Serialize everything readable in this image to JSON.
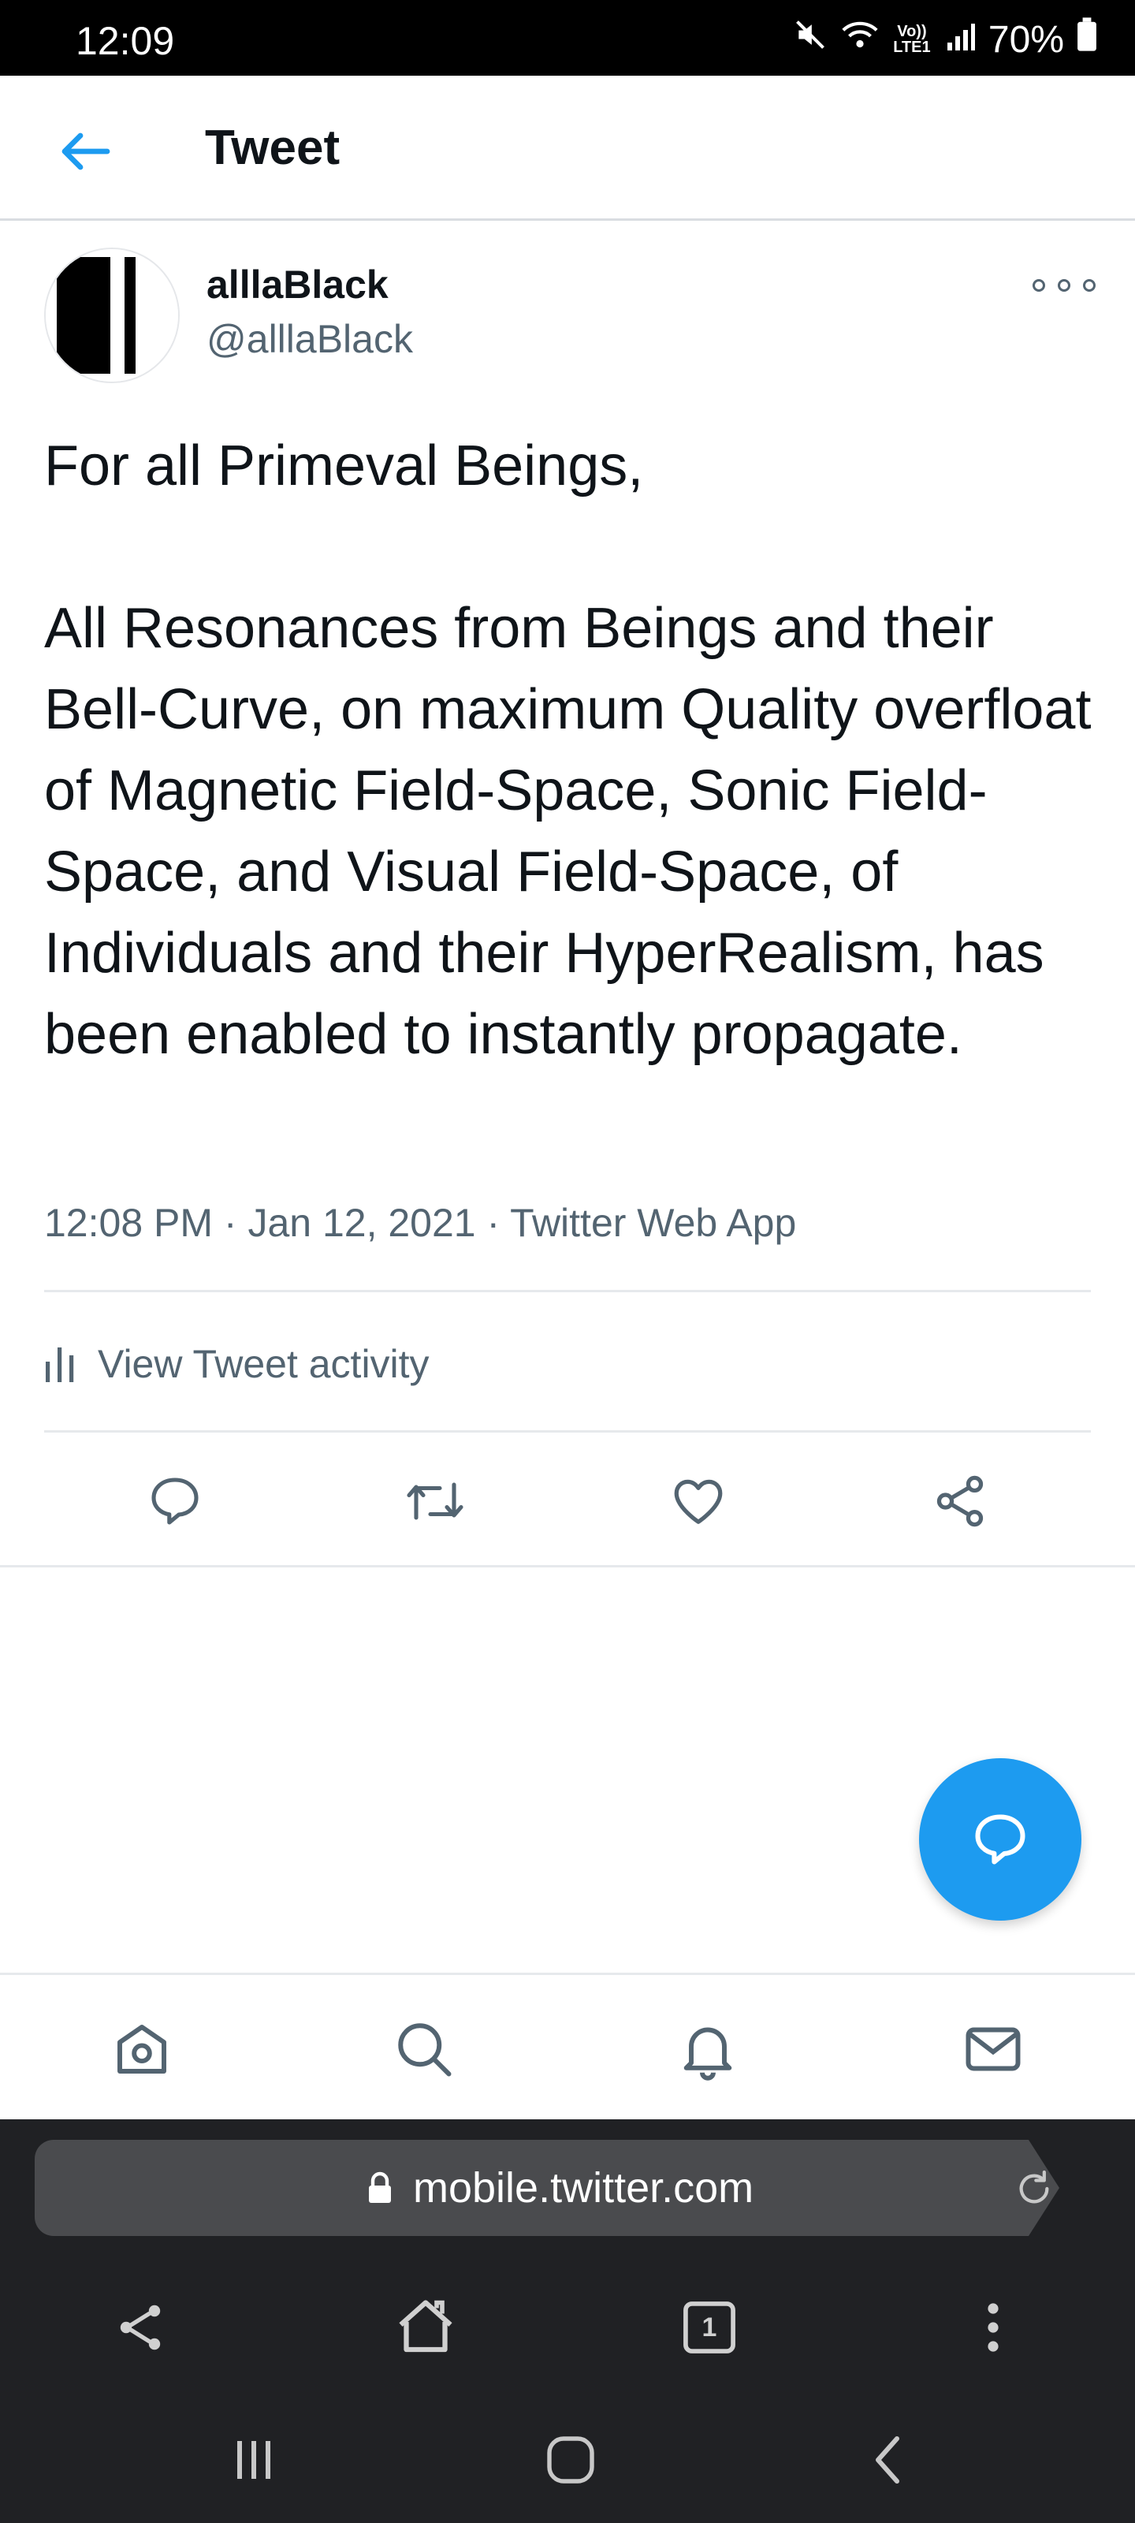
{
  "status_bar": {
    "time": "12:09",
    "lte_line1": "Vo))",
    "lte_line2": "LTE1",
    "battery": "70%"
  },
  "header": {
    "title": "Tweet"
  },
  "tweet": {
    "display_name": "alllaBlack",
    "handle": "@alllaBlack",
    "text_line1": "For all Primeval Beings,",
    "text_body": "All Resonances from Beings and their Bell-Curve, on maximum Quality overfloat of Magnetic Field-Space, Sonic Field-Space, and Visual Field-Space, of Individuals and their HyperRealism, has been enabled to instantly propagate.",
    "time": "12:08 PM",
    "date": "Jan 12, 2021",
    "source": "Twitter Web App",
    "activity_label": "View Tweet activity"
  },
  "browser": {
    "url": "mobile.twitter.com",
    "tab_count": "1"
  },
  "icons": {
    "back": "arrow-left-icon",
    "more": "more-horizontal-icon",
    "reply": "comment-icon",
    "retweet": "retweet-icon",
    "like": "heart-icon",
    "share": "share-icon",
    "compose": "compose-reply-icon",
    "nav": [
      "home-icon",
      "search-icon",
      "bell-icon",
      "mail-icon"
    ]
  },
  "colors": {
    "accent": "#1d9bf0",
    "muted": "#536471",
    "text": "#0f1419"
  }
}
